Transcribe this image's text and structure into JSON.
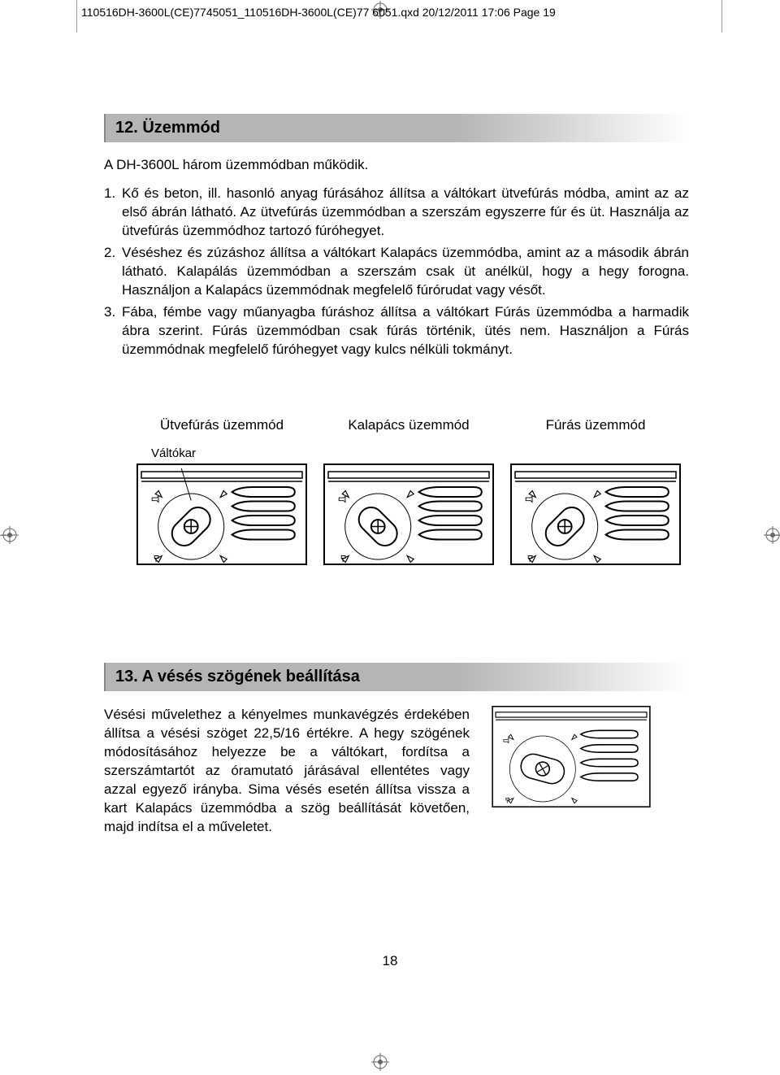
{
  "header_line": "110516DH-3600L(CE)7745051_110516DH-3600L(CE)77  6051.qxd  20/12/2011  17:06  Page 19",
  "section12": {
    "heading": "12. Üzemmód",
    "intro": "A DH-3600L három üzemmódban működik.",
    "items": [
      "Kő és beton, ill. hasonló anyag fúrásához állítsa a váltókart ütvefúrás módba, amint az az első ábrán látható. Az ütvefúrás üzemmódban a szerszám egyszerre fúr és üt. Használja az ütvefúrás üzemmódhoz tartozó fúróhegyet.",
      "Véséshez és zúzáshoz állítsa a váltókart Kalapács üzemmódba, amint az a második ábrán látható. Kalapálás üzemmódban a szerszám csak üt anélkül, hogy a hegy forogna. Használjon a Kalapács üzemmódnak megfelelő fúrórudat vagy vésőt.",
      "Fába, fémbe vagy műanyagba fúráshoz állítsa a váltókart Fúrás üzemmódba a harmadik ábra szerint. Fúrás üzemmódban csak fúrás történik, ütés nem. Használjon a Fúrás üzemmódnak megfelelő fúróhegyet vagy kulcs nélküli tokmányt."
    ],
    "modes": [
      {
        "label": "Ütvefúrás üzemmód",
        "sublabel": "Váltókar",
        "dial_angle": -45
      },
      {
        "label": "Kalapács üzemmód",
        "sublabel": "",
        "dial_angle": 45
      },
      {
        "label": "Fúrás üzemmód",
        "sublabel": "",
        "dial_angle": 135
      }
    ]
  },
  "section13": {
    "heading": "13. A vésés szögének beállítása",
    "text": "Vésési művelethez a kényelmes munkavégzés érdekében állítsa a vésési szöget 22,5/16 értékre. A hegy szögének módosításához helyezze be a váltókart, fordítsa a szerszámtartót az óramutató járásával ellentétes vagy azzal egyező irányba. Sima vésés esetén állítsa vissza a kart Kalapács üzemmódba a szög beállítását követően, majd indítsa el a műveletet.",
    "dial_angle": 15
  },
  "page_number": "18",
  "colors": {
    "line": "#000000",
    "housing_fill": "#ffffff",
    "grip_line": "#000000",
    "heading_grey": "#b5b5b5"
  }
}
